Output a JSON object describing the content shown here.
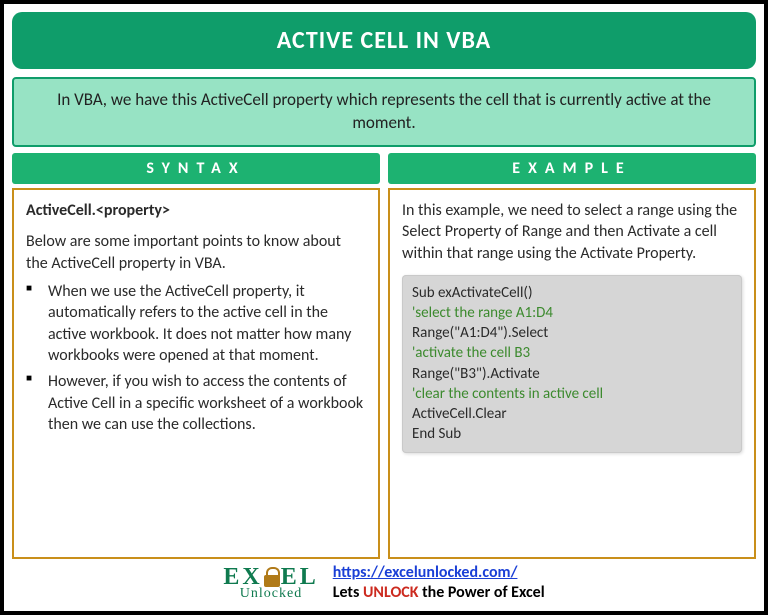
{
  "title": "ACTIVE CELL IN VBA",
  "description": "In VBA, we have this ActiveCell property which represents the cell that is currently active at the moment.",
  "syntax": {
    "header": "SYNTAX",
    "heading": "ActiveCell.<property>",
    "intro": "Below are some important points to know about the ActiveCell property in VBA.",
    "points": [
      "When we use the ActiveCell property, it automatically refers to the active cell in the active workbook. It does not matter how many workbooks were opened at that moment.",
      "However, if you wish to access the contents of Active Cell in a specific worksheet of a workbook then we can use the collections."
    ]
  },
  "example": {
    "header": "EXAMPLE",
    "intro": "In this example, we need to select a range using the Select Property of Range and then Activate a cell within that range using the Activate Property.",
    "code": [
      {
        "text": "Sub exActivateCell()",
        "comment": false
      },
      {
        "text": "'select the range A1:D4",
        "comment": true
      },
      {
        "text": "Range(\"A1:D4\").Select",
        "comment": false
      },
      {
        "text": "'activate the cell B3",
        "comment": true
      },
      {
        "text": "Range(\"B3\").Activate",
        "comment": false
      },
      {
        "text": "'clear the contents in active cell",
        "comment": true
      },
      {
        "text": "ActiveCell.Clear",
        "comment": false
      },
      {
        "text": "End Sub",
        "comment": false
      }
    ]
  },
  "footer": {
    "logo_top_left": "EX",
    "logo_top_right": "EL",
    "logo_bottom": "Unlocked",
    "url": "https://excelunlocked.com/",
    "tagline_pre": "Lets ",
    "tagline_mid": "UNLOCK",
    "tagline_post": " the Power of Excel"
  },
  "colors": {
    "title_bg": "#0f9d6a",
    "desc_bg": "#97e3c4",
    "col_header_bg": "#1db271",
    "border_amber": "#c98f1a",
    "code_bg": "#d6d6d6",
    "comment": "#3c8a2e",
    "link": "#1a3fd6",
    "unlock": "#cc2a1f",
    "logo_green": "#0f7a4f"
  }
}
